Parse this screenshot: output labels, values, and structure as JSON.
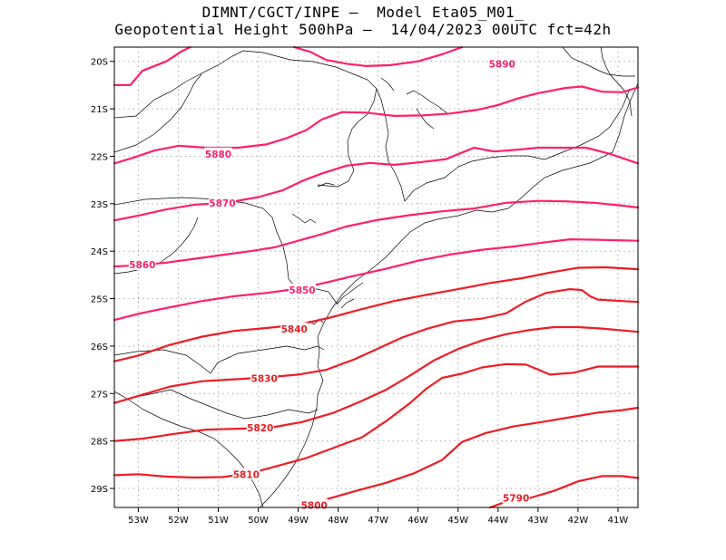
{
  "header": {
    "line1": "DIMNT/CGCT/INPE –  Model Eta05_M01_",
    "line2": "Geopotential Height 500hPa –  14/04/2023 00UTC fct=42h"
  },
  "chart_data": {
    "type": "line",
    "title": "Geopotential Height 500hPa",
    "xlabel": "",
    "ylabel": "",
    "xlim": [
      -53.6,
      -40.5
    ],
    "ylim": [
      -29.4,
      -19.7
    ],
    "x_ticks": [
      -53,
      -52,
      -51,
      -50,
      -49,
      -48,
      -47,
      -46,
      -45,
      -44,
      -43,
      -42,
      -41
    ],
    "x_tick_labels": [
      "53W",
      "52W",
      "51W",
      "50W",
      "49W",
      "48W",
      "47W",
      "46W",
      "45W",
      "44W",
      "43W",
      "42W",
      "41W"
    ],
    "y_ticks": [
      -20,
      -21,
      -22,
      -23,
      -24,
      -25,
      -26,
      -27,
      -28,
      -29
    ],
    "y_tick_labels": [
      "20S",
      "21S",
      "22S",
      "23S",
      "24S",
      "25S",
      "26S",
      "27S",
      "28S",
      "29S"
    ],
    "grid": true,
    "colors": {
      "magenta": "#ff1f6b",
      "red": "#ee1c24"
    },
    "series": [
      {
        "name": "5890",
        "label": "5890",
        "color": "#ff1f6b",
        "label_at": [
          -43.9,
          -20.05
        ],
        "points": [
          [
            -53.6,
            -20.5
          ],
          [
            -53.2,
            -20.5
          ],
          [
            -53.1,
            -20.4
          ],
          [
            -52.9,
            -20.2
          ],
          [
            -52.3,
            -20.0
          ],
          [
            -51.9,
            -19.78
          ],
          [
            -51.7,
            -19.7
          ]
        ]
      },
      {
        "name": "5890b",
        "label": "",
        "color": "#ff1f6b",
        "points": [
          [
            -49.1,
            -19.7
          ],
          [
            -48.7,
            -19.8
          ],
          [
            -48.3,
            -19.97
          ],
          [
            -47.8,
            -20.05
          ],
          [
            -47.3,
            -20.1
          ],
          [
            -46.7,
            -20.08
          ],
          [
            -46.0,
            -20.0
          ],
          [
            -45.4,
            -19.85
          ],
          [
            -44.9,
            -19.7
          ]
        ]
      },
      {
        "name": "5880",
        "label": "5880",
        "color": "#ff1f6b",
        "label_at": [
          -51.0,
          -21.95
        ],
        "points": [
          [
            -53.6,
            -22.15
          ],
          [
            -53.2,
            -22.05
          ],
          [
            -52.6,
            -21.88
          ],
          [
            -52.0,
            -21.78
          ],
          [
            -51.3,
            -21.82
          ],
          [
            -50.5,
            -21.82
          ],
          [
            -49.8,
            -21.75
          ],
          [
            -49.3,
            -21.62
          ],
          [
            -48.8,
            -21.45
          ],
          [
            -48.4,
            -21.22
          ],
          [
            -47.9,
            -21.07
          ],
          [
            -47.3,
            -21.08
          ],
          [
            -46.6,
            -21.15
          ],
          [
            -45.9,
            -21.14
          ],
          [
            -45.2,
            -21.1
          ],
          [
            -44.5,
            -21.02
          ],
          [
            -44.0,
            -20.92
          ],
          [
            -43.5,
            -20.78
          ],
          [
            -43.0,
            -20.67
          ],
          [
            -42.3,
            -20.56
          ],
          [
            -41.9,
            -20.53
          ],
          [
            -41.4,
            -20.64
          ],
          [
            -40.9,
            -20.65
          ],
          [
            -40.5,
            -20.55
          ]
        ]
      },
      {
        "name": "5870",
        "label": "5870",
        "color": "#ff1f6b",
        "label_at": [
          -50.9,
          -22.98
        ],
        "points": [
          [
            -53.6,
            -23.35
          ],
          [
            -53.0,
            -23.25
          ],
          [
            -52.3,
            -23.12
          ],
          [
            -51.6,
            -23.02
          ],
          [
            -50.8,
            -22.98
          ],
          [
            -50.0,
            -22.86
          ],
          [
            -49.4,
            -22.72
          ],
          [
            -48.9,
            -22.52
          ],
          [
            -48.4,
            -22.36
          ],
          [
            -47.8,
            -22.2
          ],
          [
            -47.2,
            -22.14
          ],
          [
            -46.6,
            -22.18
          ],
          [
            -46.0,
            -22.13
          ],
          [
            -45.3,
            -22.06
          ],
          [
            -44.9,
            -21.92
          ],
          [
            -44.6,
            -21.82
          ],
          [
            -44.1,
            -21.9
          ],
          [
            -43.5,
            -21.86
          ],
          [
            -43.0,
            -21.82
          ],
          [
            -42.4,
            -21.82
          ],
          [
            -41.8,
            -21.82
          ],
          [
            -41.2,
            -21.95
          ],
          [
            -40.5,
            -22.15
          ]
        ]
      },
      {
        "name": "5860",
        "label": "5860",
        "color": "#ff1f6b",
        "label_at": [
          -52.9,
          -24.28
        ],
        "points": [
          [
            -53.6,
            -24.32
          ],
          [
            -53.0,
            -24.3
          ],
          [
            -52.3,
            -24.24
          ],
          [
            -51.6,
            -24.16
          ],
          [
            -50.9,
            -24.08
          ],
          [
            -50.2,
            -24.0
          ],
          [
            -49.6,
            -23.92
          ],
          [
            -49.0,
            -23.78
          ],
          [
            -48.4,
            -23.64
          ],
          [
            -47.8,
            -23.48
          ],
          [
            -47.0,
            -23.34
          ],
          [
            -46.2,
            -23.24
          ],
          [
            -45.4,
            -23.16
          ],
          [
            -44.6,
            -23.1
          ],
          [
            -43.8,
            -22.98
          ],
          [
            -43.0,
            -22.94
          ],
          [
            -42.3,
            -22.95
          ],
          [
            -41.6,
            -22.98
          ],
          [
            -40.9,
            -23.04
          ],
          [
            -40.5,
            -23.08
          ]
        ]
      },
      {
        "name": "5850",
        "label": "5850",
        "color": "#ff1f6b",
        "label_at": [
          -48.9,
          -24.82
        ],
        "points": [
          [
            -53.6,
            -25.45
          ],
          [
            -53.0,
            -25.32
          ],
          [
            -52.2,
            -25.18
          ],
          [
            -51.4,
            -25.05
          ],
          [
            -50.6,
            -24.95
          ],
          [
            -49.8,
            -24.88
          ],
          [
            -49.1,
            -24.8
          ],
          [
            -48.4,
            -24.68
          ],
          [
            -47.6,
            -24.52
          ],
          [
            -46.8,
            -24.37
          ],
          [
            -46.0,
            -24.2
          ],
          [
            -45.2,
            -24.07
          ],
          [
            -44.4,
            -23.97
          ],
          [
            -43.6,
            -23.9
          ],
          [
            -42.9,
            -23.82
          ],
          [
            -42.2,
            -23.75
          ],
          [
            -41.5,
            -23.76
          ],
          [
            -40.5,
            -23.78
          ]
        ]
      },
      {
        "name": "5840",
        "label": "5840",
        "color": "#ee1c24",
        "label_at": [
          -49.1,
          -25.64
        ],
        "points": [
          [
            -53.6,
            -26.32
          ],
          [
            -53.0,
            -26.2
          ],
          [
            -52.2,
            -25.97
          ],
          [
            -51.4,
            -25.8
          ],
          [
            -50.6,
            -25.68
          ],
          [
            -49.8,
            -25.62
          ],
          [
            -49.0,
            -25.55
          ],
          [
            -48.2,
            -25.4
          ],
          [
            -47.4,
            -25.22
          ],
          [
            -46.6,
            -25.05
          ],
          [
            -45.8,
            -24.92
          ],
          [
            -45.0,
            -24.8
          ],
          [
            -44.2,
            -24.67
          ],
          [
            -43.4,
            -24.57
          ],
          [
            -42.7,
            -24.45
          ],
          [
            -42.0,
            -24.35
          ],
          [
            -41.3,
            -24.34
          ],
          [
            -40.5,
            -24.38
          ]
        ]
      },
      {
        "name": "5830",
        "label": "5830",
        "color": "#ee1c24",
        "label_at": [
          -49.85,
          -26.68
        ],
        "points": [
          [
            -53.6,
            -27.2
          ],
          [
            -53.0,
            -27.05
          ],
          [
            -52.2,
            -26.85
          ],
          [
            -51.4,
            -26.74
          ],
          [
            -50.6,
            -26.7
          ],
          [
            -49.8,
            -26.66
          ],
          [
            -49.0,
            -26.6
          ],
          [
            -48.3,
            -26.5
          ],
          [
            -47.6,
            -26.28
          ],
          [
            -47.0,
            -26.05
          ],
          [
            -46.4,
            -25.82
          ],
          [
            -45.8,
            -25.64
          ],
          [
            -45.1,
            -25.48
          ],
          [
            -44.4,
            -25.42
          ],
          [
            -43.8,
            -25.31
          ],
          [
            -43.3,
            -25.06
          ],
          [
            -42.8,
            -24.88
          ],
          [
            -42.2,
            -24.8
          ],
          [
            -41.9,
            -24.82
          ],
          [
            -41.7,
            -24.95
          ],
          [
            -41.5,
            -25.02
          ],
          [
            -40.9,
            -25.05
          ],
          [
            -40.5,
            -25.07
          ]
        ]
      },
      {
        "name": "5820",
        "label": "5820",
        "color": "#ee1c24",
        "label_at": [
          -49.95,
          -27.72
        ],
        "points": [
          [
            -53.6,
            -28.0
          ],
          [
            -52.9,
            -27.95
          ],
          [
            -52.1,
            -27.85
          ],
          [
            -51.3,
            -27.76
          ],
          [
            -50.5,
            -27.74
          ],
          [
            -49.7,
            -27.72
          ],
          [
            -48.9,
            -27.6
          ],
          [
            -48.1,
            -27.4
          ],
          [
            -47.4,
            -27.15
          ],
          [
            -46.8,
            -26.92
          ],
          [
            -46.2,
            -26.62
          ],
          [
            -45.6,
            -26.3
          ],
          [
            -45.0,
            -26.06
          ],
          [
            -44.4,
            -25.88
          ],
          [
            -43.8,
            -25.75
          ],
          [
            -43.2,
            -25.66
          ],
          [
            -42.6,
            -25.6
          ],
          [
            -42.0,
            -25.6
          ],
          [
            -41.4,
            -25.63
          ],
          [
            -40.5,
            -25.7
          ]
        ]
      },
      {
        "name": "5810",
        "label": "5810",
        "color": "#ee1c24",
        "label_at": [
          -50.3,
          -28.7
        ],
        "points": [
          [
            -53.6,
            -28.72
          ],
          [
            -53.0,
            -28.7
          ],
          [
            -52.3,
            -28.75
          ],
          [
            -51.6,
            -28.77
          ],
          [
            -50.9,
            -28.76
          ],
          [
            -50.2,
            -28.68
          ],
          [
            -49.5,
            -28.52
          ],
          [
            -48.8,
            -28.36
          ],
          [
            -48.1,
            -28.14
          ],
          [
            -47.4,
            -27.92
          ],
          [
            -46.8,
            -27.58
          ],
          [
            -46.2,
            -27.2
          ],
          [
            -45.8,
            -26.9
          ],
          [
            -45.4,
            -26.67
          ],
          [
            -44.9,
            -26.58
          ],
          [
            -44.4,
            -26.45
          ],
          [
            -43.8,
            -26.38
          ],
          [
            -43.3,
            -26.39
          ],
          [
            -42.7,
            -26.6
          ],
          [
            -42.1,
            -26.56
          ],
          [
            -41.5,
            -26.43
          ],
          [
            -40.5,
            -26.43
          ]
        ]
      },
      {
        "name": "5800",
        "label": "5800",
        "color": "#ee1c24",
        "label_at": [
          -48.6,
          -29.35
        ],
        "points": [
          [
            -48.9,
            -29.4
          ],
          [
            -48.3,
            -29.23
          ],
          [
            -47.5,
            -29.04
          ],
          [
            -46.8,
            -28.88
          ],
          [
            -46.1,
            -28.68
          ],
          [
            -45.4,
            -28.4
          ],
          [
            -44.9,
            -28.02
          ],
          [
            -44.3,
            -27.83
          ],
          [
            -43.6,
            -27.69
          ],
          [
            -42.9,
            -27.6
          ],
          [
            -42.2,
            -27.5
          ],
          [
            -41.5,
            -27.4
          ],
          [
            -40.9,
            -27.35
          ],
          [
            -40.5,
            -27.3
          ]
        ]
      },
      {
        "name": "5790",
        "label": "5790",
        "color": "#ee1c24",
        "label_at": [
          -43.55,
          -29.2
        ],
        "points": [
          [
            -44.2,
            -29.4
          ],
          [
            -43.8,
            -29.28
          ],
          [
            -43.2,
            -29.2
          ],
          [
            -42.6,
            -29.05
          ],
          [
            -42.0,
            -28.85
          ],
          [
            -41.4,
            -28.74
          ],
          [
            -40.9,
            -28.74
          ],
          [
            -40.5,
            -28.78
          ]
        ]
      }
    ]
  }
}
